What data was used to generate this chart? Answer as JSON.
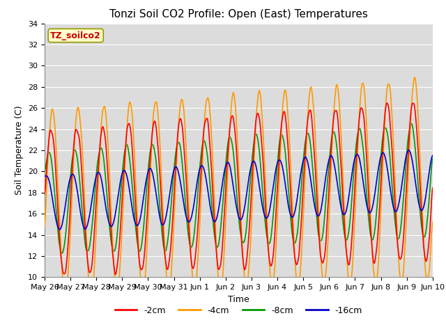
{
  "title": "Tonzi Soil CO2 Profile: Open (East) Temperatures",
  "xlabel": "Time",
  "ylabel": "Soil Temperature (C)",
  "ylim": [
    10,
    34
  ],
  "legend_label": "TZ_soilco2",
  "series_labels": [
    "-2cm",
    "-4cm",
    "-8cm",
    "-16cm"
  ],
  "series_colors": [
    "#ff0000",
    "#ff9900",
    "#009900",
    "#0000cc"
  ],
  "line_width": 1.2,
  "tick_labels": [
    "May 26",
    "May 27",
    "May 28",
    "May 29",
    "May 30",
    "May 31",
    "Jun 1",
    "Jun 2",
    "Jun 3",
    "Jun 4",
    "Jun 5",
    "Jun 6",
    "Jun 7",
    "Jun 8",
    "Jun 9",
    "Jun 10"
  ],
  "background_color": "#dcdcdc",
  "grid_color": "#ffffff",
  "title_fontsize": 11,
  "axis_fontsize": 9,
  "tick_fontsize": 8
}
